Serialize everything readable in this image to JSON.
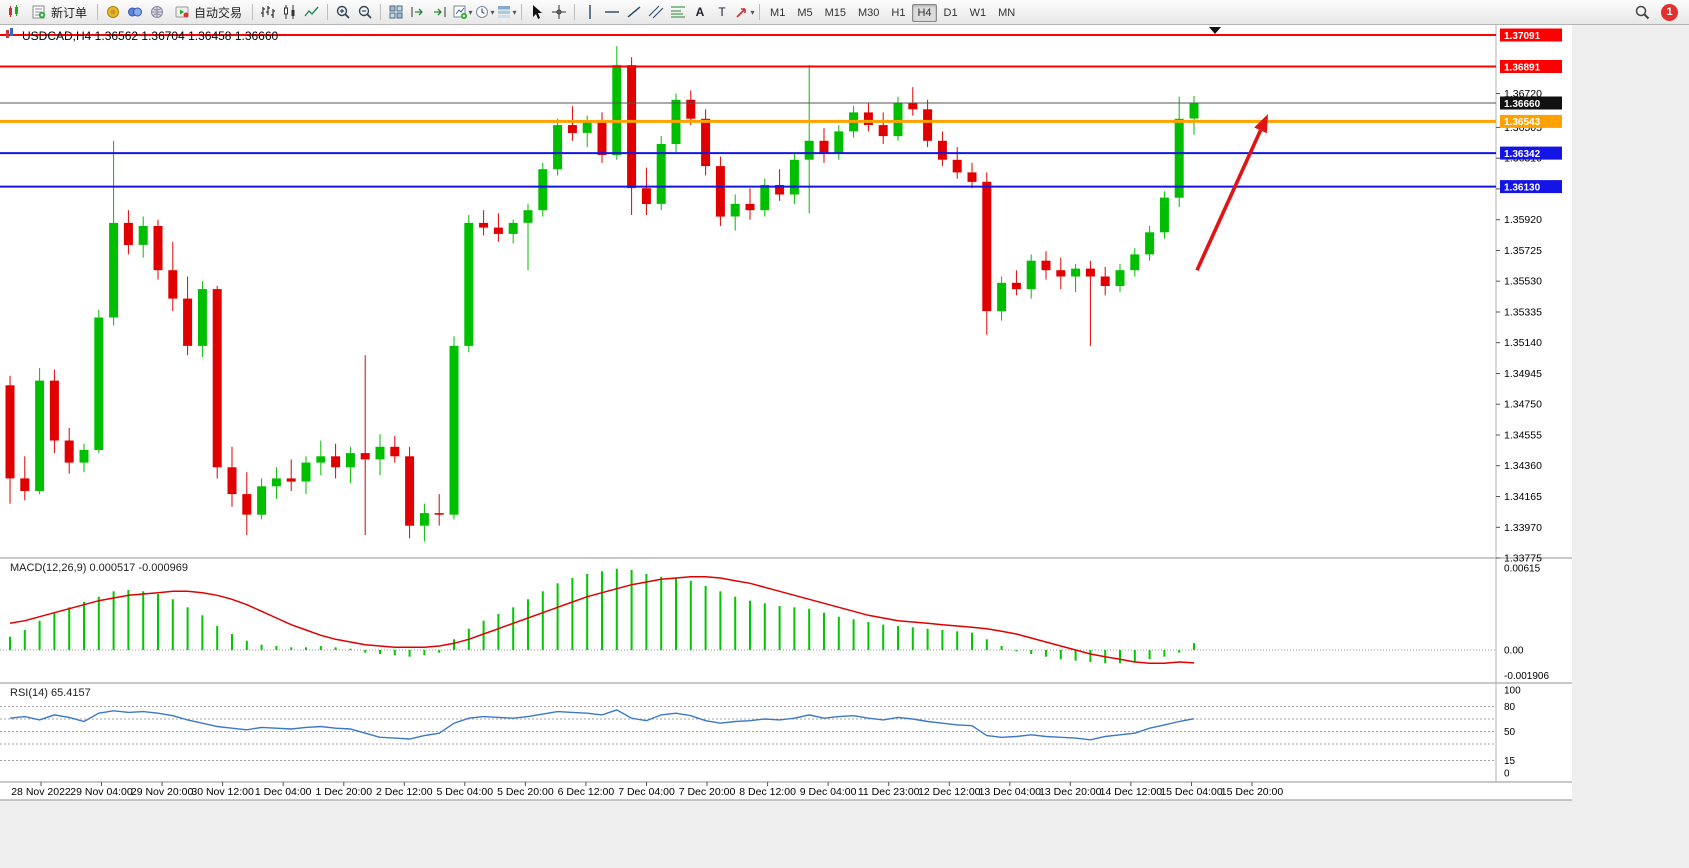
{
  "toolbar": {
    "items": [
      {
        "kind": "icon",
        "name": "chart-window-icon",
        "glyph": "candle-mini",
        "interactable": false
      },
      {
        "kind": "label",
        "name": "new-order-button",
        "glyph": "new-order",
        "label": "新订单"
      },
      {
        "kind": "sep"
      },
      {
        "kind": "icon",
        "name": "market-watch-icon",
        "glyph": "gold"
      },
      {
        "kind": "icon",
        "name": "data-window-icon",
        "glyph": "blue"
      },
      {
        "kind": "icon",
        "name": "web-community-icon",
        "glyph": "globe"
      },
      {
        "kind": "label",
        "name": "autotrading-button",
        "glyph": "autotrade",
        "label": "自动交易"
      },
      {
        "kind": "sep"
      },
      {
        "kind": "icon",
        "name": "bar-chart-icon",
        "glyph": "bars"
      },
      {
        "kind": "icon",
        "name": "candlestick-chart-icon",
        "glyph": "candles"
      },
      {
        "kind": "icon",
        "name": "line-chart-icon",
        "glyph": "line"
      },
      {
        "kind": "sep"
      },
      {
        "kind": "icon",
        "name": "zoom-in-icon",
        "glyph": "zoom-in"
      },
      {
        "kind": "icon",
        "name": "zoom-out-icon",
        "glyph": "zoom-out"
      },
      {
        "kind": "sep"
      },
      {
        "kind": "icon",
        "name": "tile-windows-icon",
        "glyph": "tiles"
      },
      {
        "kind": "icon",
        "name": "auto-scroll-icon",
        "glyph": "auto-scroll"
      },
      {
        "kind": "icon",
        "name": "chart-shift-icon",
        "glyph": "chart-shift"
      },
      {
        "kind": "icon",
        "name": "new-chart-icon",
        "glyph": "new-chart",
        "dropdown": true
      },
      {
        "kind": "icon",
        "name": "periods-icon",
        "glyph": "periods",
        "dropdown": true
      },
      {
        "kind": "icon",
        "name": "templates-icon",
        "glyph": "templates",
        "dropdown": true
      },
      {
        "kind": "sep"
      },
      {
        "kind": "icon",
        "name": "cursor-icon",
        "glyph": "cursor"
      },
      {
        "kind": "icon",
        "name": "crosshair-icon",
        "glyph": "cross"
      },
      {
        "kind": "sep"
      },
      {
        "kind": "icon",
        "name": "vertical-line-icon",
        "glyph": "vline"
      },
      {
        "kind": "icon",
        "name": "horizontal-line-icon",
        "glyph": "hline"
      },
      {
        "kind": "icon",
        "name": "trendline-icon",
        "glyph": "trend"
      },
      {
        "kind": "icon",
        "name": "channel-icon",
        "glyph": "channel"
      },
      {
        "kind": "icon",
        "name": "fibonacci-icon",
        "glyph": "fibo"
      },
      {
        "kind": "icon",
        "name": "text-icon",
        "glyph": "text"
      },
      {
        "kind": "icon",
        "name": "text-label-icon",
        "glyph": "label-t"
      },
      {
        "kind": "icon",
        "name": "arrows-icon",
        "glyph": "arrows",
        "dropdown": true
      },
      {
        "kind": "sep"
      },
      {
        "kind": "timeframes"
      },
      {
        "kind": "spacer"
      },
      {
        "kind": "icon",
        "name": "search-icon",
        "glyph": "search"
      },
      {
        "kind": "badge",
        "name": "notification-badge"
      }
    ],
    "timeframes": [
      "M1",
      "M5",
      "M15",
      "M30",
      "H1",
      "H4",
      "D1",
      "W1",
      "MN"
    ],
    "active_timeframe": "H4",
    "badge_count": "1"
  },
  "chart": {
    "title": "USDCAD,H4 1.36562 1.36704 1.36458 1.36660",
    "symbol": "USDCAD",
    "period": "H4",
    "ohlc": {
      "open": "1.36562",
      "high": "1.36704",
      "low": "1.36458",
      "close": "1.36660"
    }
  },
  "chart_data": {
    "type": "candlestick",
    "symbol": "USDCAD",
    "timeframe": "H4",
    "colors": {
      "up": "#00BE00",
      "down": "#E00000",
      "background": "#FFFFFF",
      "frame": "#909090"
    },
    "candles": [
      [
        1.3487,
        1.3493,
        1.3412,
        1.3428
      ],
      [
        1.3428,
        1.3442,
        1.3414,
        1.342
      ],
      [
        1.342,
        1.3498,
        1.3418,
        1.349
      ],
      [
        1.349,
        1.3497,
        1.3444,
        1.3452
      ],
      [
        1.3452,
        1.346,
        1.3431,
        1.3438
      ],
      [
        1.3438,
        1.345,
        1.3432,
        1.3446
      ],
      [
        1.3446,
        1.3535,
        1.3444,
        1.353
      ],
      [
        1.353,
        1.3642,
        1.3525,
        1.359
      ],
      [
        1.359,
        1.3598,
        1.357,
        1.3576
      ],
      [
        1.3576,
        1.3594,
        1.3568,
        1.3588
      ],
      [
        1.3588,
        1.3592,
        1.3554,
        1.356
      ],
      [
        1.356,
        1.3578,
        1.3534,
        1.3542
      ],
      [
        1.3542,
        1.3556,
        1.3506,
        1.3512
      ],
      [
        1.3512,
        1.3553,
        1.3505,
        1.3548
      ],
      [
        1.3548,
        1.355,
        1.3428,
        1.3435
      ],
      [
        1.3435,
        1.3448,
        1.341,
        1.3418
      ],
      [
        1.3418,
        1.3432,
        1.3392,
        1.3405
      ],
      [
        1.3405,
        1.3428,
        1.3402,
        1.3423
      ],
      [
        1.3423,
        1.3435,
        1.3415,
        1.3428
      ],
      [
        1.3428,
        1.344,
        1.342,
        1.3426
      ],
      [
        1.3426,
        1.3442,
        1.3418,
        1.3438
      ],
      [
        1.3438,
        1.3452,
        1.343,
        1.3442
      ],
      [
        1.3442,
        1.345,
        1.3428,
        1.3435
      ],
      [
        1.3435,
        1.3448,
        1.3425,
        1.3444
      ],
      [
        1.3444,
        1.3506,
        1.3392,
        1.344
      ],
      [
        1.344,
        1.3456,
        1.343,
        1.3448
      ],
      [
        1.3448,
        1.3455,
        1.3438,
        1.3442
      ],
      [
        1.3442,
        1.3448,
        1.339,
        1.3398
      ],
      [
        1.3398,
        1.3412,
        1.3388,
        1.3406
      ],
      [
        1.3406,
        1.3418,
        1.3398,
        1.3405
      ],
      [
        1.3405,
        1.3518,
        1.3402,
        1.3512
      ],
      [
        1.3512,
        1.3595,
        1.3508,
        1.359
      ],
      [
        1.359,
        1.3598,
        1.3582,
        1.3587
      ],
      [
        1.3587,
        1.3596,
        1.3578,
        1.3583
      ],
      [
        1.3583,
        1.3592,
        1.3577,
        1.359
      ],
      [
        1.359,
        1.3602,
        1.356,
        1.3598
      ],
      [
        1.3598,
        1.3628,
        1.3594,
        1.3624
      ],
      [
        1.3624,
        1.3656,
        1.362,
        1.3652
      ],
      [
        1.3652,
        1.3664,
        1.3642,
        1.3647
      ],
      [
        1.3647,
        1.3658,
        1.3638,
        1.3655
      ],
      [
        1.3655,
        1.366,
        1.3628,
        1.3633
      ],
      [
        1.3633,
        1.3702,
        1.363,
        1.369
      ],
      [
        1.369,
        1.3695,
        1.3595,
        1.3612
      ],
      [
        1.3612,
        1.3625,
        1.3595,
        1.3602
      ],
      [
        1.3602,
        1.3645,
        1.3598,
        1.364
      ],
      [
        1.364,
        1.3672,
        1.3635,
        1.3668
      ],
      [
        1.3668,
        1.3674,
        1.3652,
        1.3656
      ],
      [
        1.3656,
        1.3662,
        1.362,
        1.3626
      ],
      [
        1.3626,
        1.3632,
        1.3588,
        1.3594
      ],
      [
        1.3594,
        1.3608,
        1.3585,
        1.3602
      ],
      [
        1.3602,
        1.3612,
        1.3592,
        1.3598
      ],
      [
        1.3598,
        1.3618,
        1.3594,
        1.3614
      ],
      [
        1.3614,
        1.3624,
        1.3604,
        1.3608
      ],
      [
        1.3608,
        1.3634,
        1.3602,
        1.363
      ],
      [
        1.363,
        1.369,
        1.3596,
        1.3642
      ],
      [
        1.3642,
        1.365,
        1.3628,
        1.3634
      ],
      [
        1.3634,
        1.3652,
        1.363,
        1.3648
      ],
      [
        1.3648,
        1.3664,
        1.3644,
        1.366
      ],
      [
        1.366,
        1.3666,
        1.3648,
        1.3652
      ],
      [
        1.3652,
        1.366,
        1.364,
        1.3645
      ],
      [
        1.3645,
        1.367,
        1.3642,
        1.3666
      ],
      [
        1.3666,
        1.3676,
        1.3658,
        1.3662
      ],
      [
        1.3662,
        1.3668,
        1.3638,
        1.3642
      ],
      [
        1.3642,
        1.3648,
        1.3626,
        1.363
      ],
      [
        1.363,
        1.3638,
        1.3618,
        1.3622
      ],
      [
        1.3622,
        1.3628,
        1.3612,
        1.3616
      ],
      [
        1.3616,
        1.3622,
        1.3519,
        1.3534
      ],
      [
        1.3534,
        1.3556,
        1.3528,
        1.3552
      ],
      [
        1.3552,
        1.356,
        1.3544,
        1.3548
      ],
      [
        1.3548,
        1.357,
        1.3542,
        1.3566
      ],
      [
        1.3566,
        1.3572,
        1.3554,
        1.356
      ],
      [
        1.356,
        1.3568,
        1.3548,
        1.3556
      ],
      [
        1.3556,
        1.3564,
        1.3546,
        1.3561
      ],
      [
        1.3561,
        1.3566,
        1.3512,
        1.3556
      ],
      [
        1.3556,
        1.3562,
        1.3544,
        1.355
      ],
      [
        1.355,
        1.3564,
        1.3546,
        1.356
      ],
      [
        1.356,
        1.3574,
        1.3556,
        1.357
      ],
      [
        1.357,
        1.3588,
        1.3566,
        1.3584
      ],
      [
        1.3584,
        1.361,
        1.358,
        1.3606
      ],
      [
        1.3606,
        1.367,
        1.36,
        1.3656
      ],
      [
        1.36562,
        1.36704,
        1.36458,
        1.3666
      ]
    ],
    "hlines": [
      {
        "price": 1.37091,
        "label": "1.37091",
        "color": "#FF0000",
        "box": "#FF0000",
        "width": 2
      },
      {
        "price": 1.36891,
        "label": "1.36891",
        "color": "#FF0000",
        "box": "#FF0000",
        "width": 2
      },
      {
        "price": 1.3666,
        "label": "1.36660",
        "color": "#555555",
        "box": "#111111",
        "width": 1
      },
      {
        "price": 1.36543,
        "label": "1.36543",
        "color": "#FFA200",
        "box": "#FFA200",
        "width": 3
      },
      {
        "price": 1.36342,
        "label": "1.36342",
        "color": "#1414E6",
        "box": "#1414E6",
        "width": 2
      },
      {
        "price": 1.3613,
        "label": "1.36130",
        "color": "#1414E6",
        "box": "#1414E6",
        "width": 2
      }
    ],
    "price_axis": [
      "1.36720",
      "1.36505",
      "1.36310",
      "1.36115",
      "1.35920",
      "1.35725",
      "1.35530",
      "1.35335",
      "1.35140",
      "1.34945",
      "1.34750",
      "1.34555",
      "1.34360",
      "1.34165",
      "1.33970",
      "1.33775"
    ],
    "time_labels": [
      "28 Nov 2022",
      "29 Nov 04:00",
      "29 Nov 20:00",
      "30 Nov 12:00",
      "1 Dec 04:00",
      "1 Dec 20:00",
      "2 Dec 12:00",
      "5 Dec 04:00",
      "5 Dec 20:00",
      "6 Dec 12:00",
      "7 Dec 04:00",
      "7 Dec 20:00",
      "8 Dec 12:00",
      "9 Dec 04:00",
      "11 Dec 23:00",
      "12 Dec 12:00",
      "13 Dec 04:00",
      "13 Dec 20:00",
      "14 Dec 12:00",
      "15 Dec 04:00",
      "15 Dec 20:00"
    ],
    "macd": {
      "label": "MACD(12,26,9) 0.000517 -0.000969",
      "value": 0.000517,
      "signal_value": -0.000969,
      "scale_labels": [
        "0.00615",
        "0.00",
        "-0.001906"
      ],
      "hist_color": "#00C800",
      "signal_color": "#E00000",
      "histogram": [
        0.001,
        0.0015,
        0.0022,
        0.0028,
        0.0032,
        0.0036,
        0.004,
        0.0044,
        0.0045,
        0.0044,
        0.0042,
        0.0038,
        0.0032,
        0.0026,
        0.0018,
        0.0012,
        0.0007,
        0.0004,
        0.0003,
        0.0002,
        0.0002,
        0.0003,
        0.0002,
        0.0001,
        -0.0002,
        -0.0003,
        -0.0004,
        -0.0005,
        -0.0004,
        -0.0002,
        0.0008,
        0.0016,
        0.0022,
        0.0027,
        0.0032,
        0.0038,
        0.0044,
        0.005,
        0.0054,
        0.0057,
        0.0059,
        0.0061,
        0.006,
        0.0057,
        0.0055,
        0.0054,
        0.0052,
        0.0048,
        0.0044,
        0.004,
        0.0037,
        0.0035,
        0.0033,
        0.0032,
        0.0031,
        0.0028,
        0.0025,
        0.0023,
        0.0021,
        0.0019,
        0.0018,
        0.0017,
        0.0016,
        0.0015,
        0.0014,
        0.0013,
        0.0008,
        0.0003,
        -0.0001,
        -0.0003,
        -0.0005,
        -0.0007,
        -0.0008,
        -0.0009,
        -0.001,
        -0.001,
        -0.0009,
        -0.0007,
        -0.0005,
        -0.0002,
        0.000517
      ],
      "signal": [
        0.002,
        0.0022,
        0.0025,
        0.0028,
        0.0031,
        0.0034,
        0.0037,
        0.0039,
        0.0041,
        0.0042,
        0.0043,
        0.0044,
        0.0044,
        0.0043,
        0.0041,
        0.0038,
        0.0034,
        0.0029,
        0.0024,
        0.0019,
        0.0015,
        0.0011,
        0.0008,
        0.0006,
        0.0004,
        0.0003,
        0.0002,
        0.0002,
        0.0002,
        0.0003,
        0.0005,
        0.0008,
        0.0012,
        0.0016,
        0.002,
        0.0024,
        0.0028,
        0.0032,
        0.0036,
        0.004,
        0.0043,
        0.0046,
        0.0049,
        0.0051,
        0.0053,
        0.0054,
        0.0055,
        0.0055,
        0.0054,
        0.0052,
        0.005,
        0.0047,
        0.0044,
        0.0041,
        0.0038,
        0.0035,
        0.0032,
        0.0029,
        0.0026,
        0.0024,
        0.0022,
        0.0021,
        0.002,
        0.0019,
        0.0018,
        0.0017,
        0.0016,
        0.0014,
        0.0012,
        0.0009,
        0.0006,
        0.0003,
        0.0,
        -0.0003,
        -0.0005,
        -0.0007,
        -0.0009,
        -0.001,
        -0.001,
        -0.0009,
        -0.000969
      ]
    },
    "rsi": {
      "label": "RSI(14) 65.4157",
      "value": 65.4157,
      "scale_labels": [
        "100",
        "80",
        "50",
        "15",
        "0"
      ],
      "levels": [
        80,
        65,
        50,
        35,
        15
      ],
      "line_color": "#3C78C8",
      "values": [
        66,
        68,
        64,
        70,
        67,
        62,
        72,
        75,
        73,
        74,
        72,
        69,
        64,
        60,
        56,
        54,
        52,
        55,
        54,
        53,
        55,
        56,
        54,
        53,
        48,
        43,
        42,
        41,
        45,
        48,
        60,
        66,
        68,
        67,
        66,
        68,
        71,
        74,
        73,
        72,
        70,
        76,
        66,
        63,
        70,
        72,
        69,
        63,
        60,
        62,
        63,
        65,
        64,
        66,
        70,
        66,
        68,
        69,
        66,
        64,
        67,
        65,
        62,
        60,
        58,
        57,
        45,
        43,
        44,
        46,
        44,
        43,
        42,
        40,
        44,
        46,
        48,
        54,
        58,
        62,
        65.4157
      ]
    },
    "arrow": {
      "from_bar": 80.2,
      "from_price": 1.356,
      "to_bar": 85.0,
      "to_price": 1.3659,
      "color": "#E01414"
    }
  }
}
